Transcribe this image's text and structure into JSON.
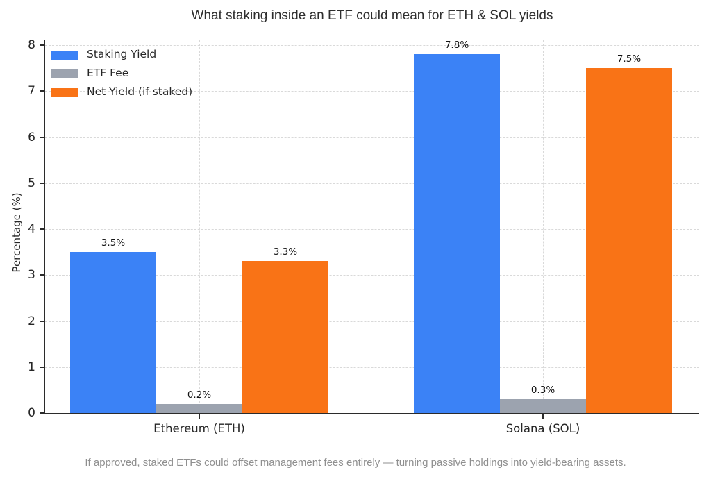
{
  "chart_data": {
    "type": "bar",
    "title": "What staking inside an ETF could mean for ETH & SOL yields",
    "ylabel": "Percentage (%)",
    "xlabel": "",
    "categories": [
      "Ethereum (ETH)",
      "Solana (SOL)"
    ],
    "series": [
      {
        "name": "Staking Yield",
        "color": "#3b82f6",
        "values": [
          3.5,
          7.8
        ],
        "value_labels": [
          "3.5%",
          "7.8%"
        ]
      },
      {
        "name": "ETF Fee",
        "color": "#9ca3af",
        "values": [
          0.2,
          0.3
        ],
        "value_labels": [
          "0.2%",
          "0.3%"
        ]
      },
      {
        "name": "Net Yield (if staked)",
        "color": "#f97316",
        "values": [
          3.3,
          7.5
        ],
        "value_labels": [
          "3.3%",
          "7.5%"
        ]
      }
    ],
    "ylim": [
      0,
      8.1
    ],
    "yticks": [
      0,
      1,
      2,
      3,
      4,
      5,
      6,
      7,
      8
    ],
    "grid": "dashed light-gray, horizontal at integer ticks and vertical at category centers",
    "legend_position": "upper left",
    "caption": "If approved, staked ETFs could offset management fees entirely — turning passive holdings into yield-bearing assets."
  }
}
